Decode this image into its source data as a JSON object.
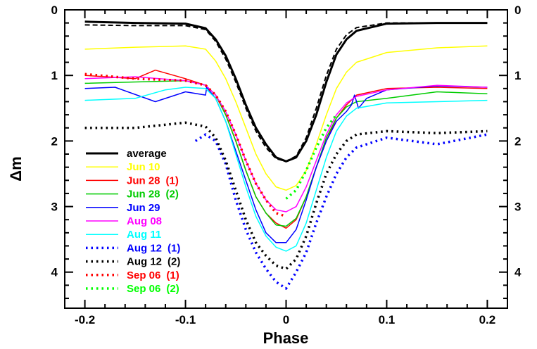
{
  "chart_data": {
    "type": "line",
    "title": "",
    "xlabel": "Phase",
    "ylabel": "Δm",
    "xlim": [
      -0.22,
      0.22
    ],
    "ylim": [
      4.55,
      0
    ],
    "x_ticks": [
      "-0.2",
      "-0.1",
      "0",
      "0.1",
      "0.2"
    ],
    "y_ticks": [
      "0",
      "1",
      "2",
      "3",
      "4"
    ],
    "legend_position": "lower-left",
    "series": [
      {
        "name": "average",
        "tag": "",
        "color": "#000000",
        "style": "solid",
        "width": 3,
        "points": [
          [
            -0.2,
            0.18
          ],
          [
            -0.15,
            0.2
          ],
          [
            -0.1,
            0.21
          ],
          [
            -0.08,
            0.28
          ],
          [
            -0.07,
            0.45
          ],
          [
            -0.06,
            0.7
          ],
          [
            -0.05,
            1.05
          ],
          [
            -0.04,
            1.45
          ],
          [
            -0.03,
            1.8
          ],
          [
            -0.02,
            2.05
          ],
          [
            -0.01,
            2.25
          ],
          [
            0,
            2.31
          ],
          [
            0.01,
            2.25
          ],
          [
            0.02,
            2.0
          ],
          [
            0.03,
            1.6
          ],
          [
            0.04,
            1.1
          ],
          [
            0.05,
            0.68
          ],
          [
            0.06,
            0.45
          ],
          [
            0.07,
            0.32
          ],
          [
            0.1,
            0.21
          ],
          [
            0.15,
            0.2
          ],
          [
            0.2,
            0.2
          ]
        ]
      },
      {
        "name": "",
        "tag": "",
        "color": "#000000",
        "style": "dashed",
        "width": 2,
        "points": [
          [
            -0.2,
            0.23
          ],
          [
            -0.15,
            0.24
          ],
          [
            -0.1,
            0.24
          ],
          [
            -0.08,
            0.3
          ],
          [
            -0.07,
            0.48
          ],
          [
            -0.06,
            0.75
          ],
          [
            -0.05,
            1.1
          ],
          [
            -0.04,
            1.5
          ],
          [
            -0.03,
            1.85
          ],
          [
            -0.02,
            2.1
          ],
          [
            -0.01,
            2.27
          ],
          [
            0,
            2.31
          ],
          [
            0.01,
            2.23
          ],
          [
            0.02,
            1.95
          ],
          [
            0.03,
            1.5
          ],
          [
            0.04,
            1.0
          ],
          [
            0.05,
            0.6
          ],
          [
            0.06,
            0.38
          ],
          [
            0.07,
            0.27
          ],
          [
            0.1,
            0.2
          ],
          [
            0.15,
            0.2
          ],
          [
            0.2,
            0.2
          ]
        ]
      },
      {
        "name": "Jun 10",
        "tag": "",
        "color": "#ffff00",
        "style": "solid",
        "width": 1.5,
        "points": [
          [
            -0.2,
            0.6
          ],
          [
            -0.15,
            0.57
          ],
          [
            -0.1,
            0.55
          ],
          [
            -0.08,
            0.6
          ],
          [
            -0.07,
            0.78
          ],
          [
            -0.06,
            1.05
          ],
          [
            -0.05,
            1.4
          ],
          [
            -0.04,
            1.8
          ],
          [
            -0.03,
            2.2
          ],
          [
            -0.02,
            2.5
          ],
          [
            -0.01,
            2.7
          ],
          [
            0,
            2.75
          ],
          [
            0.01,
            2.68
          ],
          [
            0.02,
            2.45
          ],
          [
            0.03,
            2.05
          ],
          [
            0.04,
            1.6
          ],
          [
            0.05,
            1.2
          ],
          [
            0.06,
            0.95
          ],
          [
            0.07,
            0.8
          ],
          [
            0.1,
            0.65
          ],
          [
            0.15,
            0.58
          ],
          [
            0.2,
            0.55
          ]
        ]
      },
      {
        "name": "Jun 28",
        "tag": "(1)",
        "color": "#ff0000",
        "style": "solid",
        "width": 1.5,
        "points": [
          [
            -0.2,
            1.0
          ],
          [
            -0.15,
            1.05
          ],
          [
            -0.13,
            0.92
          ],
          [
            -0.1,
            1.05
          ],
          [
            -0.08,
            1.15
          ],
          [
            -0.07,
            1.3
          ],
          [
            -0.06,
            1.6
          ],
          [
            -0.05,
            2.0
          ],
          [
            -0.04,
            2.45
          ],
          [
            -0.03,
            2.85
          ],
          [
            -0.02,
            3.1
          ],
          [
            -0.01,
            3.25
          ],
          [
            0,
            3.33
          ],
          [
            0.01,
            3.2
          ],
          [
            0.02,
            2.85
          ],
          [
            0.03,
            2.4
          ],
          [
            0.04,
            2.0
          ],
          [
            0.05,
            1.65
          ],
          [
            0.06,
            1.45
          ],
          [
            0.07,
            1.3
          ],
          [
            0.1,
            1.2
          ],
          [
            0.15,
            1.18
          ],
          [
            0.2,
            1.2
          ]
        ]
      },
      {
        "name": "Jun 28",
        "tag": "(2)",
        "color": "#00cc00",
        "style": "solid",
        "width": 1.5,
        "points": [
          [
            -0.2,
            1.12
          ],
          [
            -0.15,
            1.1
          ],
          [
            -0.1,
            1.08
          ],
          [
            -0.08,
            1.15
          ],
          [
            -0.07,
            1.3
          ],
          [
            -0.06,
            1.6
          ],
          [
            -0.05,
            2.0
          ],
          [
            -0.04,
            2.45
          ],
          [
            -0.03,
            2.85
          ],
          [
            -0.02,
            3.1
          ],
          [
            -0.01,
            3.28
          ],
          [
            0,
            3.3
          ],
          [
            0.01,
            3.18
          ],
          [
            0.02,
            2.85
          ],
          [
            0.03,
            2.4
          ],
          [
            0.04,
            1.95
          ],
          [
            0.05,
            1.65
          ],
          [
            0.06,
            1.48
          ],
          [
            0.07,
            1.4
          ],
          [
            0.1,
            1.35
          ],
          [
            0.15,
            1.25
          ],
          [
            0.2,
            1.28
          ]
        ]
      },
      {
        "name": "Jun 29",
        "tag": "",
        "color": "#0000ff",
        "style": "solid",
        "width": 1.5,
        "points": [
          [
            -0.2,
            1.2
          ],
          [
            -0.17,
            1.18
          ],
          [
            -0.13,
            1.4
          ],
          [
            -0.1,
            1.25
          ],
          [
            -0.08,
            1.3
          ],
          [
            -0.079,
            1.18
          ],
          [
            -0.07,
            1.35
          ],
          [
            -0.06,
            1.7
          ],
          [
            -0.05,
            2.15
          ],
          [
            -0.04,
            2.6
          ],
          [
            -0.03,
            3.05
          ],
          [
            -0.02,
            3.4
          ],
          [
            -0.01,
            3.55
          ],
          [
            0,
            3.55
          ],
          [
            0.01,
            3.35
          ],
          [
            0.02,
            2.9
          ],
          [
            0.03,
            2.4
          ],
          [
            0.04,
            2.0
          ],
          [
            0.05,
            1.7
          ],
          [
            0.06,
            1.55
          ],
          [
            0.065,
            1.45
          ],
          [
            0.068,
            1.3
          ],
          [
            0.072,
            1.5
          ],
          [
            0.08,
            1.35
          ],
          [
            0.1,
            1.22
          ],
          [
            0.15,
            1.16
          ],
          [
            0.2,
            1.18
          ]
        ]
      },
      {
        "name": "Aug 08",
        "tag": "",
        "color": "#ff00ff",
        "style": "solid",
        "width": 1.5,
        "points": [
          [
            -0.2,
            1.05
          ],
          [
            -0.15,
            1.02
          ],
          [
            -0.1,
            1.08
          ],
          [
            -0.08,
            1.15
          ],
          [
            -0.07,
            1.3
          ],
          [
            -0.06,
            1.55
          ],
          [
            -0.05,
            1.9
          ],
          [
            -0.04,
            2.3
          ],
          [
            -0.03,
            2.65
          ],
          [
            -0.02,
            2.9
          ],
          [
            -0.01,
            3.05
          ],
          [
            0,
            3.08
          ],
          [
            0.01,
            3.0
          ],
          [
            0.02,
            2.7
          ],
          [
            0.03,
            2.3
          ],
          [
            0.04,
            1.9
          ],
          [
            0.05,
            1.6
          ],
          [
            0.06,
            1.42
          ],
          [
            0.07,
            1.32
          ],
          [
            0.1,
            1.22
          ],
          [
            0.15,
            1.15
          ],
          [
            0.2,
            1.18
          ]
        ]
      },
      {
        "name": "Aug 11",
        "tag": "",
        "color": "#00ffff",
        "style": "solid",
        "width": 1.5,
        "points": [
          [
            -0.2,
            1.38
          ],
          [
            -0.15,
            1.35
          ],
          [
            -0.12,
            1.22
          ],
          [
            -0.1,
            1.18
          ],
          [
            -0.08,
            1.2
          ],
          [
            -0.07,
            1.35
          ],
          [
            -0.06,
            1.7
          ],
          [
            -0.05,
            2.2
          ],
          [
            -0.04,
            2.7
          ],
          [
            -0.03,
            3.15
          ],
          [
            -0.02,
            3.45
          ],
          [
            -0.01,
            3.62
          ],
          [
            0,
            3.68
          ],
          [
            0.01,
            3.6
          ],
          [
            0.02,
            3.25
          ],
          [
            0.03,
            2.75
          ],
          [
            0.04,
            2.25
          ],
          [
            0.05,
            1.85
          ],
          [
            0.06,
            1.62
          ],
          [
            0.07,
            1.5
          ],
          [
            0.1,
            1.42
          ],
          [
            0.15,
            1.4
          ],
          [
            0.2,
            1.38
          ]
        ]
      },
      {
        "name": "Aug 12",
        "tag": "(1)",
        "color": "#0000ff",
        "style": "dotted",
        "width": 3.5,
        "points": [
          [
            -0.09,
            2.0
          ],
          [
            -0.08,
            1.9
          ],
          [
            -0.07,
            2.0
          ],
          [
            -0.06,
            2.35
          ],
          [
            -0.05,
            2.9
          ],
          [
            -0.04,
            3.35
          ],
          [
            -0.03,
            3.7
          ],
          [
            -0.02,
            3.95
          ],
          [
            -0.01,
            4.15
          ],
          [
            0,
            4.25
          ],
          [
            0.01,
            4.0
          ],
          [
            0.02,
            3.7
          ],
          [
            0.03,
            3.25
          ],
          [
            0.04,
            2.85
          ],
          [
            0.05,
            2.5
          ],
          [
            0.06,
            2.25
          ],
          [
            0.07,
            2.1
          ],
          [
            0.1,
            1.95
          ],
          [
            0.15,
            2.05
          ],
          [
            0.2,
            1.9
          ]
        ]
      },
      {
        "name": "Aug 12",
        "tag": "(2)",
        "color": "#000000",
        "style": "dotted",
        "width": 3.5,
        "points": [
          [
            -0.2,
            1.8
          ],
          [
            -0.15,
            1.8
          ],
          [
            -0.1,
            1.72
          ],
          [
            -0.08,
            1.78
          ],
          [
            -0.07,
            1.95
          ],
          [
            -0.06,
            2.3
          ],
          [
            -0.05,
            2.75
          ],
          [
            -0.04,
            3.2
          ],
          [
            -0.03,
            3.55
          ],
          [
            -0.02,
            3.75
          ],
          [
            -0.01,
            3.9
          ],
          [
            0,
            3.95
          ],
          [
            0.01,
            3.8
          ],
          [
            0.02,
            3.45
          ],
          [
            0.03,
            2.95
          ],
          [
            0.04,
            2.5
          ],
          [
            0.05,
            2.2
          ],
          [
            0.06,
            2.0
          ],
          [
            0.07,
            1.9
          ],
          [
            0.1,
            1.85
          ],
          [
            0.15,
            1.88
          ],
          [
            0.2,
            1.85
          ]
        ]
      },
      {
        "name": "Sep 06",
        "tag": "(1)",
        "color": "#ff0000",
        "style": "dotted",
        "width": 3.5,
        "points": [
          [
            -0.2,
            0.98
          ],
          [
            -0.15,
            1.05
          ],
          [
            -0.1,
            1.08
          ],
          [
            -0.08,
            1.15
          ],
          [
            -0.07,
            1.3
          ],
          [
            -0.06,
            1.55
          ],
          [
            -0.05,
            1.9
          ],
          [
            -0.04,
            2.3
          ],
          [
            -0.03,
            2.65
          ],
          [
            -0.02,
            2.9
          ],
          [
            -0.01,
            3.1
          ],
          [
            0,
            3.15
          ]
        ]
      },
      {
        "name": "Sep 06",
        "tag": "(2)",
        "color": "#00ff00",
        "style": "dotted",
        "width": 3.5,
        "points": [
          [
            0,
            2.88
          ],
          [
            0.01,
            2.75
          ],
          [
            0.02,
            2.45
          ],
          [
            0.03,
            2.1
          ],
          [
            0.04,
            1.8
          ],
          [
            0.05,
            1.6
          ]
        ]
      }
    ]
  }
}
